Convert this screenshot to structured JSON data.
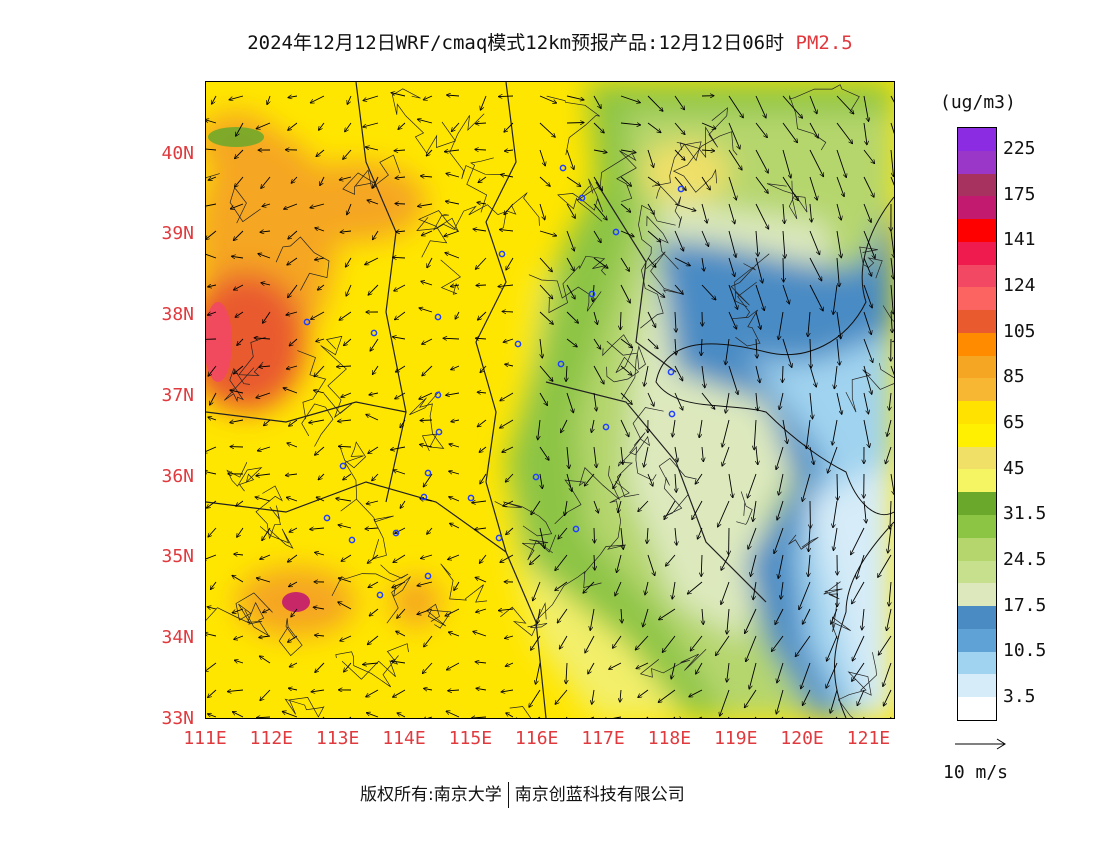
{
  "title": {
    "main": "2024年12月12日WRF/cmaq模式12km预报产品:12月12日06时",
    "variable": "PM2.5"
  },
  "units": "(ug/m3)",
  "colorbar": {
    "labels": [
      "225",
      "175",
      "141",
      "124",
      "105",
      "85",
      "65",
      "45",
      "31.5",
      "24.5",
      "17.5",
      "10.5",
      "3.5"
    ],
    "colors": [
      "#8b2be2",
      "#9b37c8",
      "#a8325f",
      "#c21a6f",
      "#ff0000",
      "#ef1a4e",
      "#f24864",
      "#fc6461",
      "#e95a2e",
      "#ff8c00",
      "#f5a623",
      "#f7b733",
      "#ffe200",
      "#ffef00",
      "#f0e068",
      "#f5f564",
      "#6aa82c",
      "#8cc444",
      "#b5d66d",
      "#c7e08e",
      "#dde9bd",
      "#4a8bc4",
      "#5fa3d6",
      "#a0d3ef",
      "#d6ecf8",
      "#ffffff"
    ]
  },
  "map": {
    "lat_labels": [
      "40N",
      "39N",
      "38N",
      "37N",
      "36N",
      "35N",
      "34N",
      "33N"
    ],
    "lon_labels": [
      "111E",
      "112E",
      "113E",
      "114E",
      "115E",
      "116E",
      "117E",
      "118E",
      "119E",
      "120E",
      "121E"
    ],
    "lat_range": [
      33,
      40.9
    ],
    "lon_range": [
      111,
      121.4
    ]
  },
  "reference_vector": {
    "label": "10 m/s",
    "speed": 10
  },
  "copyright": {
    "left": "版权所有:南京大学",
    "right": "南京创蓝科技有限公司"
  }
}
